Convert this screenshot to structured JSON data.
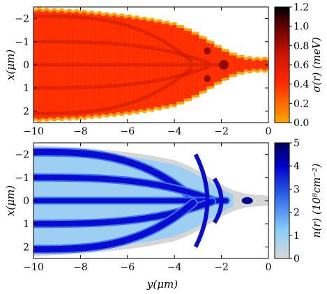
{
  "chart_data": [
    {
      "type": "heatmap",
      "ylabel": "x(μm)",
      "xlim": [
        -10,
        0
      ],
      "ylim": [
        -2.5,
        2.5
      ],
      "x_ticks": [
        "−10",
        "−8",
        "−6",
        "−4",
        "−2",
        "0"
      ],
      "y_ticks": [
        "−2",
        "−1",
        "0",
        "1",
        "2"
      ],
      "colorbar": {
        "label": "σ(r) (meV)",
        "range": [
          0,
          1.2
        ],
        "ticks": [
          "0.0",
          "0.2",
          "0.4",
          "0.6",
          "0.8",
          "1.0",
          "1.2"
        ],
        "colors": [
          "#ffa500",
          "#ff2800",
          "#c81400",
          "#5a0000",
          "#000000"
        ]
      },
      "x": [
        -10,
        -9,
        -8,
        -7,
        -6,
        -5,
        -4,
        -3.5,
        -3,
        -2.5,
        -2,
        -1.5,
        -1,
        -0.5
      ],
      "profile_halfwidth_um": [
        2.45,
        2.4,
        2.35,
        2.25,
        2.15,
        2.0,
        1.8,
        1.6,
        1.35,
        1.05,
        0.75,
        0.5,
        0.35,
        0.3
      ],
      "mean_value_meV": 0.55,
      "peak_near_apex_meV": 1.1
    },
    {
      "type": "heatmap",
      "xlabel": "y(μm)",
      "ylabel": "x(μm)",
      "xlim": [
        -10,
        0
      ],
      "ylim": [
        -2.5,
        2.5
      ],
      "x_ticks": [
        "−10",
        "−8",
        "−6",
        "−4",
        "−2",
        "0"
      ],
      "y_ticks": [
        "−2",
        "−1",
        "0",
        "1",
        "2"
      ],
      "colorbar": {
        "label": "n(r) (10⁸cm⁻²)",
        "range": [
          0,
          5
        ],
        "ticks": [
          "0",
          "1",
          "2",
          "3",
          "4",
          "5"
        ],
        "colors": [
          "#d9d9d9",
          "#87cefa",
          "#2a63e6",
          "#0000c8",
          "#00005a"
        ]
      },
      "stripes_x_um_at_y_minus10": [
        -2.1,
        -1.0,
        0.0,
        1.0,
        2.1
      ],
      "stripes_apex_y_um": [
        -3.1,
        -2.3,
        -1.7,
        -2.3,
        -3.1
      ],
      "dot_position_um": {
        "y": -0.9,
        "x": 0.0
      },
      "peak_density": 4.8
    }
  ]
}
